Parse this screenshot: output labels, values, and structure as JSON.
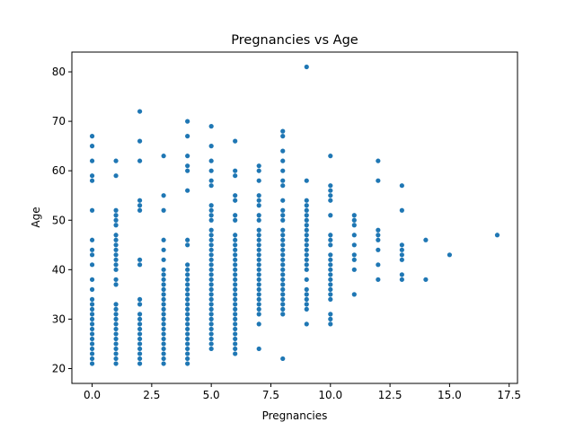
{
  "chart_data": {
    "type": "scatter",
    "title": "Pregnancies vs Age",
    "xlabel": "Pregnancies",
    "ylabel": "Age",
    "xlim": [
      -0.85,
      17.85
    ],
    "ylim": [
      17.0,
      84.0
    ],
    "xticks": [
      0.0,
      2.5,
      5.0,
      7.5,
      10.0,
      12.5,
      15.0,
      17.5
    ],
    "xtick_labels": [
      "0.0",
      "2.5",
      "5.0",
      "7.5",
      "10.0",
      "12.5",
      "15.0",
      "17.5"
    ],
    "yticks": [
      20,
      30,
      40,
      50,
      60,
      70,
      80
    ],
    "ytick_labels": [
      "20",
      "30",
      "40",
      "50",
      "60",
      "70",
      "80"
    ],
    "grid": false,
    "marker_color": "#1f77b4",
    "points_by_pregnancies": [
      {
        "x": 0,
        "ages": [
          21,
          22,
          23,
          24,
          25,
          26,
          27,
          28,
          29,
          30,
          31,
          32,
          33,
          34,
          36,
          38,
          41,
          43,
          44,
          46,
          52,
          58,
          59,
          62,
          65,
          67
        ]
      },
      {
        "x": 1,
        "ages": [
          21,
          22,
          23,
          24,
          25,
          26,
          27,
          28,
          29,
          30,
          31,
          32,
          33,
          37,
          38,
          40,
          41,
          42,
          43,
          44,
          45,
          46,
          47,
          49,
          50,
          51,
          52,
          59,
          62
        ]
      },
      {
        "x": 2,
        "ages": [
          21,
          22,
          23,
          24,
          25,
          26,
          27,
          28,
          29,
          30,
          31,
          33,
          34,
          41,
          42,
          52,
          53,
          54,
          62,
          66,
          72
        ]
      },
      {
        "x": 3,
        "ages": [
          21,
          22,
          23,
          24,
          25,
          26,
          27,
          28,
          29,
          30,
          31,
          32,
          33,
          34,
          35,
          36,
          37,
          38,
          39,
          40,
          42,
          44,
          46,
          52,
          55,
          63
        ]
      },
      {
        "x": 4,
        "ages": [
          21,
          22,
          23,
          24,
          25,
          26,
          27,
          28,
          29,
          30,
          31,
          32,
          33,
          34,
          35,
          36,
          37,
          38,
          39,
          40,
          41,
          45,
          46,
          56,
          60,
          61,
          63,
          67,
          70
        ]
      },
      {
        "x": 5,
        "ages": [
          24,
          25,
          26,
          27,
          28,
          29,
          30,
          31,
          32,
          33,
          34,
          35,
          36,
          37,
          38,
          39,
          40,
          41,
          42,
          43,
          44,
          45,
          46,
          47,
          48,
          50,
          51,
          52,
          53,
          57,
          58,
          60,
          62,
          65,
          69
        ]
      },
      {
        "x": 6,
        "ages": [
          23,
          24,
          25,
          26,
          27,
          28,
          29,
          30,
          31,
          32,
          33,
          34,
          35,
          36,
          37,
          38,
          39,
          40,
          41,
          42,
          43,
          44,
          45,
          46,
          47,
          50,
          51,
          54,
          55,
          59,
          60,
          66
        ]
      },
      {
        "x": 7,
        "ages": [
          24,
          29,
          31,
          32,
          33,
          34,
          35,
          36,
          37,
          38,
          39,
          40,
          41,
          42,
          43,
          44,
          45,
          46,
          47,
          48,
          50,
          51,
          53,
          54,
          55,
          58,
          60,
          61
        ]
      },
      {
        "x": 8,
        "ages": [
          22,
          31,
          32,
          33,
          34,
          35,
          36,
          37,
          38,
          39,
          40,
          41,
          42,
          43,
          44,
          45,
          46,
          47,
          48,
          50,
          51,
          52,
          54,
          57,
          58,
          60,
          62,
          64,
          67,
          68
        ]
      },
      {
        "x": 9,
        "ages": [
          29,
          32,
          33,
          34,
          35,
          36,
          38,
          40,
          41,
          42,
          43,
          44,
          45,
          46,
          47,
          48,
          49,
          50,
          51,
          52,
          53,
          54,
          58,
          81
        ]
      },
      {
        "x": 10,
        "ages": [
          29,
          30,
          31,
          34,
          35,
          36,
          37,
          38,
          39,
          40,
          41,
          42,
          43,
          45,
          46,
          47,
          51,
          54,
          55,
          56,
          57,
          63
        ]
      },
      {
        "x": 11,
        "ages": [
          35,
          40,
          42,
          43,
          45,
          47,
          49,
          50,
          51
        ]
      },
      {
        "x": 12,
        "ages": [
          38,
          41,
          44,
          46,
          47,
          48,
          58,
          62
        ]
      },
      {
        "x": 13,
        "ages": [
          38,
          39,
          42,
          43,
          44,
          45,
          52,
          57
        ]
      },
      {
        "x": 14,
        "ages": [
          38,
          46
        ]
      },
      {
        "x": 15,
        "ages": [
          43
        ]
      },
      {
        "x": 17,
        "ages": [
          47
        ]
      }
    ]
  }
}
